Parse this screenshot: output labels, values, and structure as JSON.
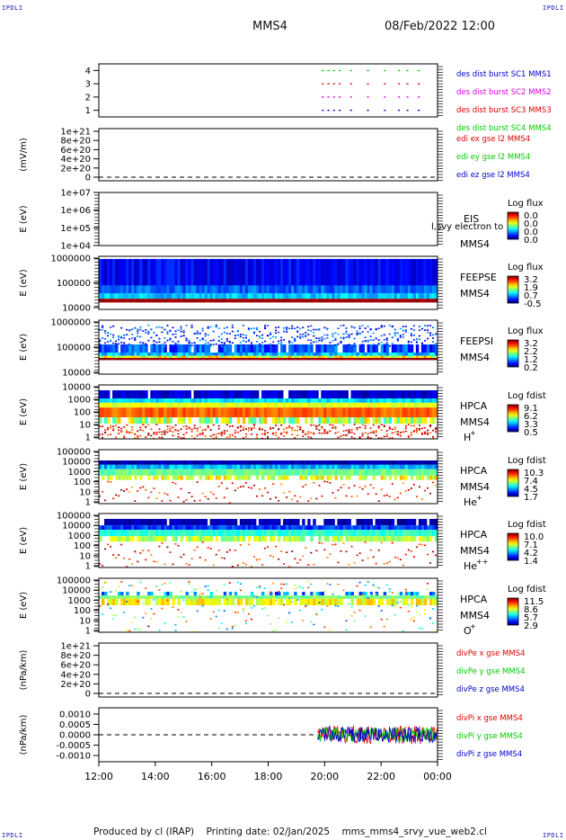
{
  "corner_label": "IPDLI",
  "header": {
    "spacecraft": "MMS4",
    "datetime": "08/Feb/2022 12:00"
  },
  "footer": {
    "produced_by": "Produced by cl (IRAP)",
    "printing_date": "Printing date: 02/Jan/2025",
    "script_name": "mms_mms4_srvy_vue_web2.cl"
  },
  "x_axis": {
    "ticks": [
      "12:00",
      "14:00",
      "16:00",
      "18:00",
      "20:00",
      "22:00",
      "00:00"
    ]
  },
  "colors": {
    "red": "#dd0000",
    "green": "#00cc00",
    "blue": "#0000cc",
    "magenta": "#dd00dd"
  },
  "chart_data": [
    {
      "id": "p1",
      "type": "scatter",
      "ylim": [
        0.5,
        4.5
      ],
      "y_ticks": [
        "4",
        "3",
        "2",
        "1"
      ],
      "legend": [
        {
          "text": "des dist burst SC1 MMS1",
          "color": "#0000cc"
        },
        {
          "text": "des dist burst SC2 MMS2",
          "color": "#dd00dd"
        },
        {
          "text": "des dist burst SC3 MMS3",
          "color": "#dd0000"
        },
        {
          "text": "des dist burst SC4 MMS4",
          "color": "#00cc00"
        }
      ],
      "series": [
        {
          "level": 4,
          "color": "#00cc00",
          "x_hours": [
            19.9,
            20.1,
            20.3,
            20.5,
            20.9,
            21.5,
            22.1,
            22.6,
            22.9,
            23.3
          ]
        },
        {
          "level": 3,
          "color": "#dd0000",
          "x_hours": [
            19.9,
            20.1,
            20.3,
            20.5,
            20.9,
            21.5,
            22.1,
            22.6,
            22.9,
            23.3
          ]
        },
        {
          "level": 2,
          "color": "#dd00dd",
          "x_hours": [
            19.9,
            20.1,
            20.3,
            20.5,
            20.9,
            21.5,
            22.1,
            22.6,
            22.9,
            23.3
          ]
        },
        {
          "level": 1,
          "color": "#0000cc",
          "x_hours": [
            19.9,
            20.1,
            20.3,
            20.5,
            20.9,
            21.5,
            22.1,
            22.6,
            22.9,
            23.3
          ]
        }
      ]
    },
    {
      "id": "p2",
      "type": "line",
      "ylabel": "(mV/m)",
      "y_ticks": [
        "1e+21",
        "8e+20",
        "6e+20",
        "4e+20",
        "2e+20",
        "0"
      ],
      "legend": [
        {
          "text": "edi ex gse l2 MMS4",
          "color": "#dd0000"
        },
        {
          "text": "edi ey gse l2 MMS4",
          "color": "#00cc00"
        },
        {
          "text": "edi ez gse l2 MMS4",
          "color": "#0000cc"
        }
      ]
    },
    {
      "id": "p3",
      "type": "heatmap",
      "ylabel": "E (eV)",
      "y_ticks": [
        "1e+07",
        "1e+06",
        "1e+05",
        "1e+04"
      ],
      "instrument": "EIS",
      "spacecraft": "MMS4",
      "extra_label": "l,svy electron to",
      "colorbar": {
        "title": "Log flux",
        "labels": [
          "0.0",
          "0.0",
          "0.0",
          "0.0"
        ]
      }
    },
    {
      "id": "p4",
      "type": "heatmap",
      "ylabel": "E (eV)",
      "y_ticks": [
        "1000000",
        "100000",
        "10000"
      ],
      "instrument": "FEEPSE",
      "spacecraft": "MMS4",
      "colorbar": {
        "title": "Log flux",
        "labels": [
          "3.2",
          "1.9",
          "0.7",
          "-0.5"
        ]
      }
    },
    {
      "id": "p5",
      "type": "heatmap",
      "ylabel": "E (eV)",
      "y_ticks": [
        "1000000",
        "100000",
        "10000"
      ],
      "instrument": "FEEPSI",
      "spacecraft": "MMS4",
      "colorbar": {
        "title": "Log flux",
        "labels": [
          "3.2",
          "2.2",
          "1.2",
          "0.2"
        ]
      }
    },
    {
      "id": "p6",
      "type": "heatmap",
      "ylabel": "E (eV)",
      "y_ticks": [
        "10000",
        "1000",
        "100",
        "10",
        "1"
      ],
      "instrument": "HPCA",
      "spacecraft": "MMS4",
      "species": "H",
      "charge": "+",
      "colorbar": {
        "title": "Log fdist",
        "labels": [
          "9.1",
          "6.2",
          "3.3",
          "0.5"
        ]
      }
    },
    {
      "id": "p7",
      "type": "heatmap",
      "ylabel": "E (eV)",
      "y_ticks": [
        "100000",
        "10000",
        "1000",
        "100",
        "10",
        "1"
      ],
      "instrument": "HPCA",
      "spacecraft": "MMS4",
      "species": "He",
      "charge": "+",
      "colorbar": {
        "title": "Log fdist",
        "labels": [
          "10.3",
          "7.4",
          "4.5",
          "1.7"
        ]
      }
    },
    {
      "id": "p8",
      "type": "heatmap",
      "ylabel": "E (eV)",
      "y_ticks": [
        "100000",
        "10000",
        "1000",
        "100",
        "10",
        "1"
      ],
      "instrument": "HPCA",
      "spacecraft": "MMS4",
      "species": "He",
      "charge": "++",
      "colorbar": {
        "title": "Log fdist",
        "labels": [
          "10.0",
          "7.1",
          "4.2",
          "1.4"
        ]
      }
    },
    {
      "id": "p9",
      "type": "heatmap",
      "ylabel": "E (eV)",
      "y_ticks": [
        "100000",
        "10000",
        "1000",
        "100",
        "10",
        "1"
      ],
      "instrument": "HPCA",
      "spacecraft": "MMS4",
      "species": "O",
      "charge": "+",
      "colorbar": {
        "title": "Log fdist",
        "labels": [
          "11.5",
          "8.6",
          "5.7",
          "2.9"
        ]
      }
    },
    {
      "id": "p10",
      "type": "line",
      "ylabel": "(nPa/km)",
      "y_ticks": [
        "1e+21",
        "8e+20",
        "6e+20",
        "4e+20",
        "2e+20",
        "0"
      ],
      "legend": [
        {
          "text": "divPe x gse MMS4",
          "color": "#dd0000"
        },
        {
          "text": "divPe y gse MMS4",
          "color": "#00cc00"
        },
        {
          "text": "divPe z gse MMS4",
          "color": "#0000cc"
        }
      ]
    },
    {
      "id": "p11",
      "type": "line",
      "ylabel": "(nPa/km)",
      "y_ticks": [
        "0.0010",
        "0.0005",
        "0.0000",
        "-0.0005",
        "-0.0010"
      ],
      "ylim": [
        -0.0013,
        0.0013
      ],
      "data_start_hour": 19.75,
      "legend": [
        {
          "text": "divPi x gse MMS4",
          "color": "#dd0000"
        },
        {
          "text": "divPi y gse MMS4",
          "color": "#00cc00"
        },
        {
          "text": "divPi z gse MMS4",
          "color": "#0000cc"
        }
      ]
    }
  ]
}
